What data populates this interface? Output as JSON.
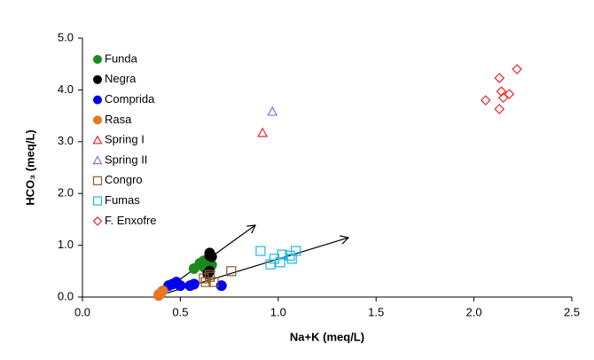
{
  "chart_data": {
    "type": "scatter",
    "x_label": "Na+K (meq/L)",
    "y_label": "HCO₃ (meq/L)",
    "xlim": [
      0,
      2.5
    ],
    "ylim": [
      0,
      5
    ],
    "xticks": [
      {
        "value": 0,
        "label": "0.0"
      },
      0.5,
      {
        "value": 1,
        "label": "1.0"
      },
      1.5,
      {
        "value": 2,
        "label": "2.0"
      },
      2.5
    ],
    "yticks": [
      {
        "value": 0,
        "label": "0.0"
      },
      {
        "value": 1,
        "label": "1.0"
      },
      {
        "value": 2,
        "label": "2.0"
      },
      {
        "value": 3,
        "label": "3.0"
      },
      {
        "value": 4,
        "label": "4.0"
      },
      {
        "value": 5,
        "label": "5.0"
      }
    ],
    "legend": "top-left",
    "series": [
      {
        "name": "Funda",
        "color": "#1a8a1a",
        "marker": "circle",
        "filled": true,
        "x": [
          0.57,
          0.6,
          0.62,
          0.64,
          0.66,
          0.62
        ],
        "values": [
          0.55,
          0.65,
          0.7,
          0.6,
          0.62,
          0.58
        ]
      },
      {
        "name": "Negra",
        "color": "#000000",
        "marker": "circle",
        "filled": true,
        "x": [
          0.65,
          0.65,
          0.66,
          0.65,
          0.64
        ],
        "values": [
          0.85,
          0.8,
          0.78,
          0.5,
          0.45
        ]
      },
      {
        "name": "Comprida",
        "color": "#0000ee",
        "marker": "circle",
        "filled": true,
        "x": [
          0.44,
          0.48,
          0.5,
          0.55,
          0.57,
          0.71,
          0.46
        ],
        "values": [
          0.22,
          0.29,
          0.22,
          0.22,
          0.25,
          0.22,
          0.25
        ]
      },
      {
        "name": "Rasa",
        "color": "#e87722",
        "marker": "circle",
        "filled": true,
        "x": [
          0.39,
          0.4,
          0.41,
          0.39
        ],
        "values": [
          0.03,
          0.08,
          0.12,
          0.05
        ]
      },
      {
        "name": "Spring I",
        "color": "#e8262a",
        "marker": "triangle",
        "filled": false,
        "x": [
          0.92
        ],
        "values": [
          3.17
        ]
      },
      {
        "name": "Spring II",
        "color": "#9966cc",
        "marker": "triangle",
        "filled": false,
        "x": [
          0.97
        ],
        "values": [
          3.58
        ]
      },
      {
        "name": "Congro",
        "color": "#8b5a2b",
        "marker": "square",
        "filled": false,
        "x": [
          0.76,
          0.65,
          0.63,
          0.67,
          0.65,
          0.62
        ],
        "values": [
          0.5,
          0.43,
          0.29,
          0.29,
          0.39,
          0.36
        ]
      },
      {
        "name": "Fumas",
        "color": "#1fb5e8",
        "marker": "square",
        "filled": false,
        "x": [
          0.91,
          0.96,
          0.98,
          1.01,
          1.02,
          1.06,
          1.07,
          1.09
        ],
        "values": [
          0.89,
          0.63,
          0.74,
          0.67,
          0.82,
          0.8,
          0.74,
          0.89
        ]
      },
      {
        "name": "F. Enxofre",
        "color": "#e8262a",
        "marker": "diamond",
        "filled": false,
        "x": [
          2.06,
          2.13,
          2.13,
          2.14,
          2.15,
          2.18,
          2.22
        ],
        "values": [
          3.8,
          3.63,
          4.23,
          3.97,
          3.85,
          3.92,
          4.4
        ]
      }
    ]
  }
}
